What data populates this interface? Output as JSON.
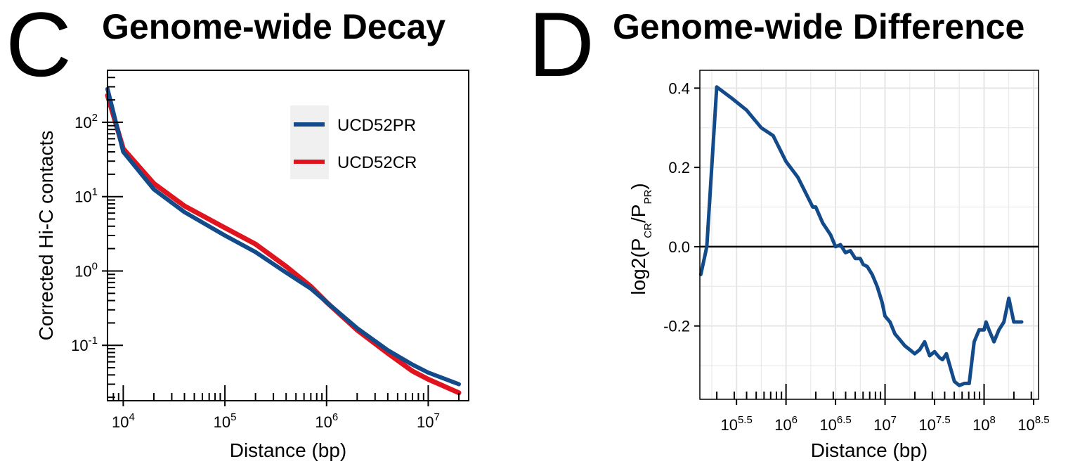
{
  "panels": {
    "c": {
      "letter": "C",
      "title": "Genome-wide Decay"
    },
    "d": {
      "letter": "D",
      "title": "Genome-wide Difference"
    }
  },
  "colors": {
    "pr": "#134b8a",
    "cr": "#e0141e",
    "zero_line": "#000000",
    "grid": "#e6e6e6"
  },
  "chart_data": [
    {
      "type": "line",
      "title": "Genome-wide Decay",
      "xlabel": "Distance (bp)",
      "ylabel": "Corrected Hi-C contacts",
      "x_scale": "log",
      "y_scale": "log",
      "xlim": [
        7000,
        25000000
      ],
      "ylim": [
        0.018,
        500
      ],
      "x_ticks": [
        {
          "value": 10000,
          "base": "10",
          "exp": "4"
        },
        {
          "value": 100000,
          "base": "10",
          "exp": "5"
        },
        {
          "value": 1000000,
          "base": "10",
          "exp": "6"
        },
        {
          "value": 10000000,
          "base": "10",
          "exp": "7"
        }
      ],
      "y_ticks": [
        {
          "value": 0.1,
          "base": "10",
          "exp": "-1"
        },
        {
          "value": 1,
          "base": "10",
          "exp": "0"
        },
        {
          "value": 10,
          "base": "10",
          "exp": "1"
        },
        {
          "value": 100,
          "base": "10",
          "exp": "2"
        }
      ],
      "grid": false,
      "legend_position": "top-right",
      "series": [
        {
          "name": "UCD52PR",
          "color": "#134b8a",
          "x": [
            7000,
            10000,
            20000,
            40000,
            100000,
            200000,
            400000,
            700000,
            1000000,
            2000000,
            4000000,
            7000000,
            10000000,
            20000000
          ],
          "y": [
            280,
            40,
            12.5,
            6.2,
            3.0,
            1.8,
            0.95,
            0.58,
            0.38,
            0.17,
            0.086,
            0.055,
            0.043,
            0.03
          ]
        },
        {
          "name": "UCD52CR",
          "color": "#e0141e",
          "x": [
            7000,
            10000,
            20000,
            40000,
            100000,
            200000,
            400000,
            700000,
            1000000,
            2000000,
            4000000,
            7000000,
            10000000,
            20000000
          ],
          "y": [
            230,
            44,
            15,
            7.5,
            3.8,
            2.3,
            1.15,
            0.62,
            0.38,
            0.16,
            0.078,
            0.045,
            0.035,
            0.023
          ]
        }
      ]
    },
    {
      "type": "line",
      "title": "Genome-wide Difference",
      "xlabel": "Distance (bp)",
      "ylabel": "log2(P_CR/P_PR)",
      "ylabel_parts": {
        "pre": "log2(P",
        "sub1": "CR",
        "mid": "/P",
        "sub2": "PR",
        "post": ")"
      },
      "x_scale": "log10",
      "y_scale": "linear",
      "xlim": [
        5.13,
        8.55
      ],
      "ylim": [
        -0.385,
        0.445
      ],
      "x_ticks": [
        {
          "value": 5.5,
          "base": "10",
          "exp": "5.5"
        },
        {
          "value": 6,
          "base": "10",
          "exp": "6"
        },
        {
          "value": 6.5,
          "base": "10",
          "exp": "6.5"
        },
        {
          "value": 7,
          "base": "10",
          "exp": "7"
        },
        {
          "value": 7.5,
          "base": "10",
          "exp": "7.5"
        },
        {
          "value": 8,
          "base": "10",
          "exp": "8"
        },
        {
          "value": 8.5,
          "base": "10",
          "exp": "8.5"
        }
      ],
      "y_ticks": [
        {
          "value": 0.4,
          "label": "0.4"
        },
        {
          "value": 0.2,
          "label": "0.2"
        },
        {
          "value": 0.0,
          "label": "0.0"
        },
        {
          "value": -0.2,
          "label": "-0.2"
        }
      ],
      "grid": true,
      "reference_line_y": 0,
      "series": [
        {
          "name": "",
          "color": "#134b8a",
          "log10_x": [
            5.14,
            5.2,
            5.3,
            5.45,
            5.6,
            5.75,
            5.87,
            6.0,
            6.12,
            6.2,
            6.27,
            6.3,
            6.37,
            6.45,
            6.5,
            6.55,
            6.6,
            6.65,
            6.7,
            6.75,
            6.78,
            6.82,
            6.87,
            6.92,
            6.97,
            7.0,
            7.05,
            7.1,
            7.15,
            7.2,
            7.25,
            7.3,
            7.35,
            7.4,
            7.45,
            7.5,
            7.55,
            7.58,
            7.62,
            7.7,
            7.75,
            7.8,
            7.85,
            7.9,
            7.95,
            8.0,
            8.02,
            8.05,
            8.1,
            8.15,
            8.2,
            8.25,
            8.3,
            8.35,
            8.38
          ],
          "y": [
            -0.07,
            0.0,
            0.403,
            0.375,
            0.345,
            0.3,
            0.28,
            0.215,
            0.175,
            0.135,
            0.1,
            0.1,
            0.06,
            0.03,
            0.0,
            0.005,
            -0.015,
            -0.01,
            -0.03,
            -0.03,
            -0.045,
            -0.05,
            -0.07,
            -0.1,
            -0.14,
            -0.175,
            -0.19,
            -0.22,
            -0.235,
            -0.25,
            -0.26,
            -0.27,
            -0.26,
            -0.24,
            -0.275,
            -0.265,
            -0.28,
            -0.285,
            -0.27,
            -0.34,
            -0.35,
            -0.345,
            -0.345,
            -0.24,
            -0.21,
            -0.21,
            -0.19,
            -0.21,
            -0.24,
            -0.21,
            -0.19,
            -0.13,
            -0.19,
            -0.19,
            -0.19
          ]
        }
      ]
    }
  ]
}
